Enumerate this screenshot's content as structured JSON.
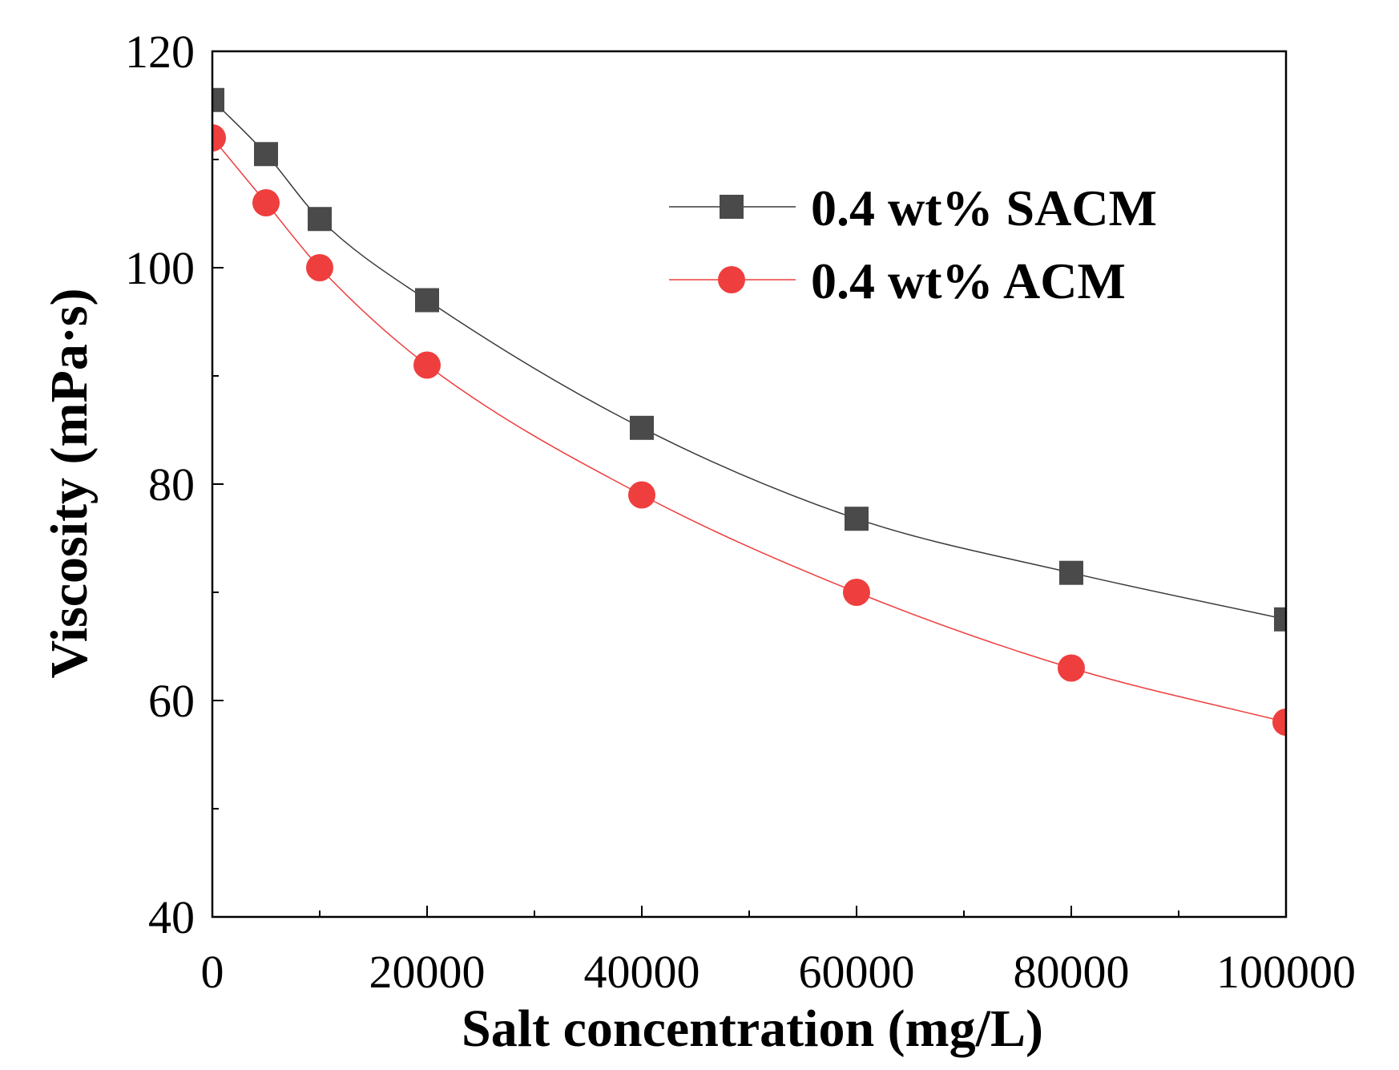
{
  "chart_data": {
    "type": "line",
    "title": "",
    "xlabel": "Salt concentration (mg/L)",
    "ylabel": "Viscosity (mPa·s)",
    "xlim": [
      0,
      100000
    ],
    "ylim": [
      40,
      120
    ],
    "x_ticks": [
      0,
      20000,
      40000,
      60000,
      80000,
      100000
    ],
    "x_tick_labels": [
      "0",
      "20000",
      "40000",
      "60000",
      "80000",
      "100000"
    ],
    "y_ticks": [
      40,
      60,
      80,
      100,
      120
    ],
    "y_tick_labels": [
      "40",
      "60",
      "80",
      "100",
      "120"
    ],
    "x_minor_ticks": [
      10000,
      30000,
      50000,
      70000,
      90000
    ],
    "y_minor_ticks": [
      50,
      70,
      90,
      110
    ],
    "grid": false,
    "legend_position": "top-right",
    "series": [
      {
        "name": "0.4 wt% SACM",
        "color": "#4a4a4a",
        "line_color": "#3a3a3a",
        "marker": "square",
        "x": [
          0,
          5000,
          10000,
          20000,
          40000,
          60000,
          80000,
          100000
        ],
        "y": [
          115.5,
          110.5,
          104.5,
          97,
          85.2,
          76.8,
          71.8,
          67.5
        ]
      },
      {
        "name": "0.4 wt% ACM",
        "color": "#ef3e3e",
        "line_color": "#ef3e3e",
        "marker": "circle",
        "x": [
          0,
          5000,
          10000,
          20000,
          40000,
          60000,
          80000,
          100000
        ],
        "y": [
          112,
          106,
          100,
          91,
          79,
          70,
          63,
          58
        ]
      }
    ]
  }
}
